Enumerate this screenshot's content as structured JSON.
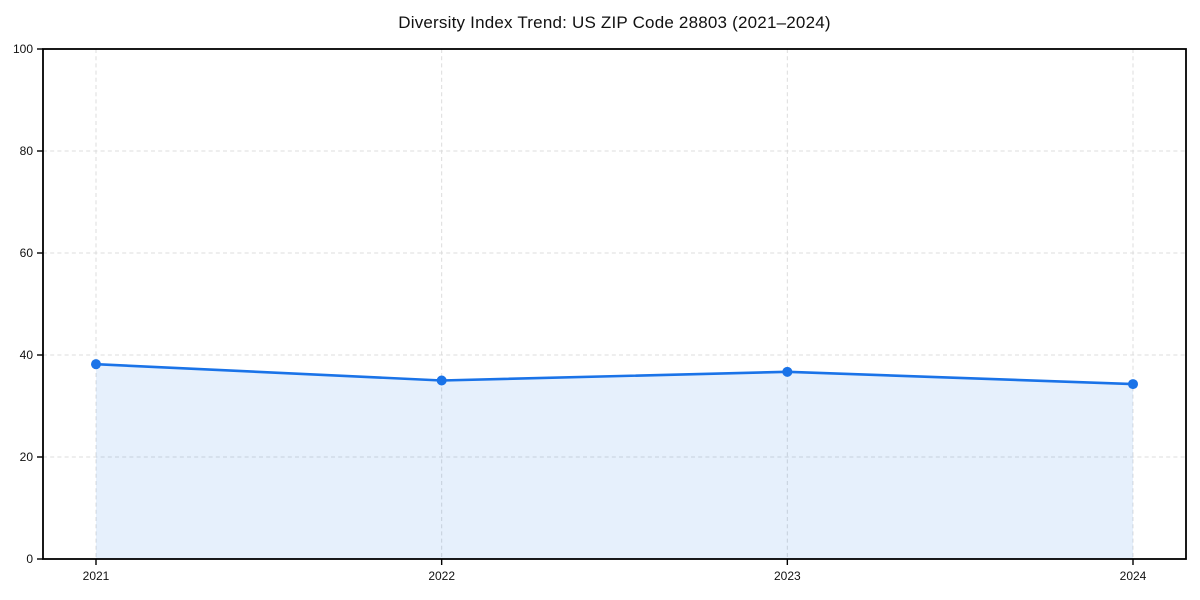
{
  "page": {
    "background": "#ffffff"
  },
  "chart_data": {
    "type": "line",
    "title": "Diversity Index Trend: US ZIP Code 28803 (2021–2024)",
    "x": [
      "2021",
      "2022",
      "2023",
      "2024"
    ],
    "series": [
      {
        "name": "Diversity Index",
        "values": [
          38.2,
          35.0,
          36.7,
          34.3
        ]
      }
    ],
    "xlabel": "",
    "ylabel": "",
    "ylim": [
      0,
      100
    ],
    "yticks": [
      0,
      20,
      40,
      60,
      80,
      100
    ],
    "grid": "dashed",
    "legend": "none",
    "area_fill": true,
    "colors": {
      "line": "#1a73e8",
      "marker": "#1a73e8",
      "fill_rgba": "rgba(26,115,232,0.11)",
      "grid": "#dcdcdc",
      "frame": "#000000",
      "tick_label": "#111111",
      "background": "#ffffff"
    }
  }
}
